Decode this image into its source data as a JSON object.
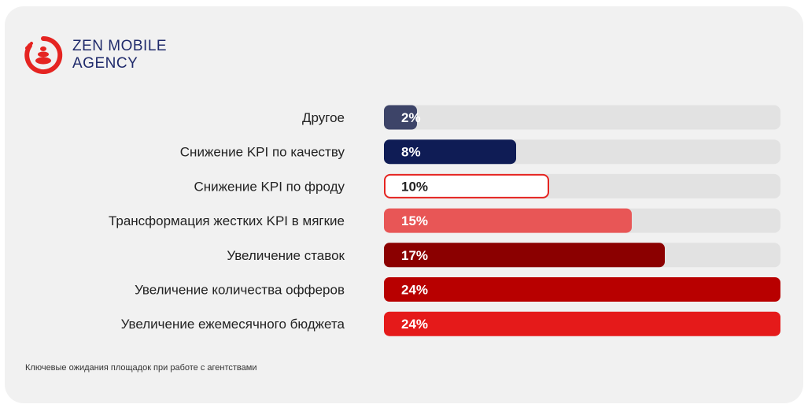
{
  "brand": {
    "line1": "ZEN MOBILE",
    "line2": "AGENCY"
  },
  "footnote": "Ключевые ожидания площадок при работе с агентствами",
  "colors": {
    "track": "#e2e2e2",
    "brand_red": "#e52421",
    "brand_navy": "#1f2a6b"
  },
  "chart_data": {
    "type": "bar",
    "orientation": "horizontal",
    "title": "",
    "xlabel": "",
    "ylabel": "",
    "xlim": [
      0,
      24
    ],
    "grid": false,
    "legend": "none",
    "categories": [
      "Другое",
      "Снижение KPI по качеству",
      "Снижение KPI по фроду",
      "Трансформация жестких KPI в мягкие",
      "Увеличение ставок",
      "Увеличение количества офферов",
      "Увеличение ежемесячного бюджета"
    ],
    "values": [
      2,
      8,
      10,
      15,
      17,
      24,
      24
    ],
    "value_labels": [
      "2%",
      "8%",
      "10%",
      "15%",
      "17%",
      "24%",
      "24%"
    ],
    "bar_colors": [
      "#3d4468",
      "#0f1c55",
      "#ffffff",
      "#e85656",
      "#8b0000",
      "#b80000",
      "#e51a1a"
    ],
    "bar_outline": [
      null,
      null,
      "#e52421",
      null,
      null,
      null,
      null
    ],
    "label_colors": [
      "#ffffff",
      "#ffffff",
      "#222222",
      "#ffffff",
      "#ffffff",
      "#ffffff",
      "#ffffff"
    ]
  }
}
